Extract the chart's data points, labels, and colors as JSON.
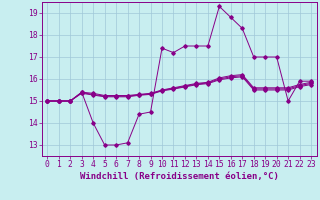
{
  "xlabel": "Windchill (Refroidissement éolien,°C)",
  "background_color": "#c8eef0",
  "grid_color": "#a0c8d8",
  "line_color": "#880088",
  "xlim": [
    -0.5,
    23.5
  ],
  "ylim": [
    12.5,
    19.5
  ],
  "yticks": [
    13,
    14,
    15,
    16,
    17,
    18,
    19
  ],
  "xticks": [
    0,
    1,
    2,
    3,
    4,
    5,
    6,
    7,
    8,
    9,
    10,
    11,
    12,
    13,
    14,
    15,
    16,
    17,
    18,
    19,
    20,
    21,
    22,
    23
  ],
  "series": {
    "main": [
      15.0,
      15.0,
      15.0,
      15.4,
      14.0,
      13.0,
      13.0,
      13.1,
      14.4,
      14.5,
      17.4,
      17.2,
      17.5,
      17.5,
      17.5,
      19.3,
      18.8,
      18.3,
      17.0,
      17.0,
      17.0,
      15.0,
      15.9,
      15.9
    ],
    "line2": [
      15.0,
      15.0,
      15.0,
      15.4,
      15.35,
      15.25,
      15.25,
      15.25,
      15.3,
      15.35,
      15.5,
      15.6,
      15.7,
      15.8,
      15.85,
      16.05,
      16.15,
      16.2,
      15.6,
      15.6,
      15.6,
      15.6,
      15.75,
      15.85
    ],
    "line3": [
      15.0,
      15.0,
      15.0,
      15.38,
      15.3,
      15.22,
      15.22,
      15.22,
      15.28,
      15.32,
      15.48,
      15.57,
      15.67,
      15.77,
      15.82,
      16.0,
      16.1,
      16.15,
      15.55,
      15.55,
      15.55,
      15.55,
      15.7,
      15.8
    ],
    "line4": [
      15.0,
      15.0,
      15.0,
      15.35,
      15.27,
      15.19,
      15.19,
      15.19,
      15.26,
      15.3,
      15.46,
      15.54,
      15.64,
      15.74,
      15.79,
      15.96,
      16.05,
      16.1,
      15.5,
      15.5,
      15.5,
      15.5,
      15.65,
      15.75
    ]
  },
  "xlabel_fontsize": 6.5,
  "tick_fontsize": 5.8
}
